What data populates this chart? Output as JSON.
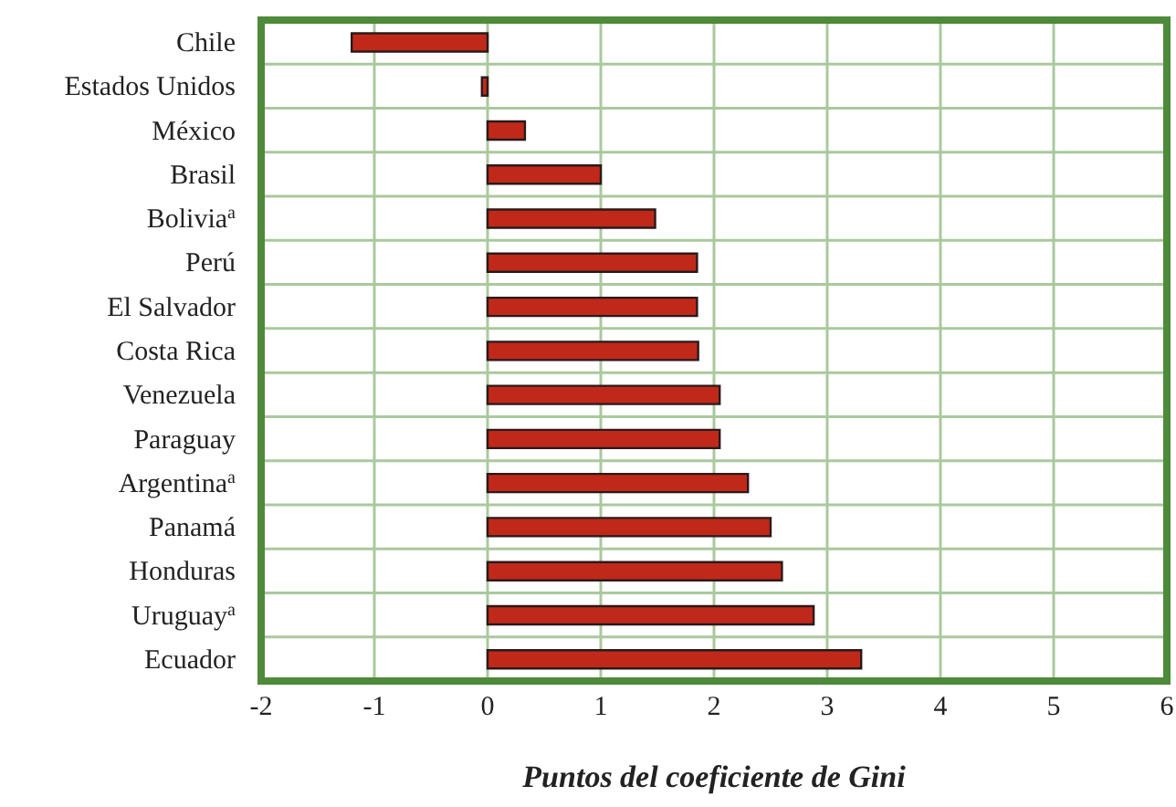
{
  "chart_data": {
    "type": "bar",
    "orientation": "horizontal",
    "xlabel": "Puntos del coeficiente de Gini",
    "categories": [
      "Chile",
      "Estados Unidos",
      "México",
      "Brasil",
      "Bolivia$^{a}$",
      "Perú",
      "El Salvador",
      "Costa Rica",
      "Venezuela",
      "Paraguay",
      "Argentina$^{a}$",
      "Panamá",
      "Honduras",
      "Uruguay$^{a}$",
      "Ecuador"
    ],
    "values": [
      -1.2,
      -0.05,
      0.33,
      1.0,
      1.48,
      1.85,
      1.85,
      1.86,
      2.05,
      2.05,
      2.3,
      2.5,
      2.6,
      2.88,
      3.3
    ],
    "color": "#c0291a",
    "xlim": [
      -2,
      6
    ],
    "xticks": [
      -2,
      -1,
      0,
      1,
      2,
      3,
      4,
      5,
      6
    ],
    "grid": true
  }
}
